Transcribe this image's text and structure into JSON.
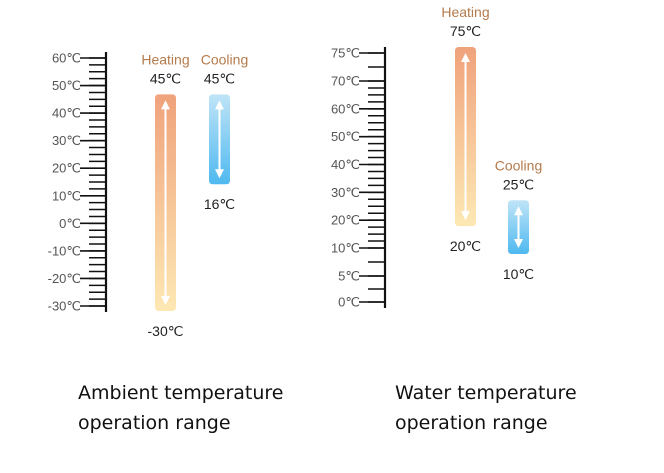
{
  "colors": {
    "heating_label": "#b57b4c",
    "heating_top": "#f0a27c",
    "heating_bottom": "#fde8b4",
    "cooling_top": "#bfe4f7",
    "cooling_bottom": "#4fb9ef",
    "axis": "#111111",
    "tick_text": "#555555",
    "value_text": "#222222"
  },
  "ambient": {
    "caption_line1": "Ambient temperature",
    "caption_line2": "operation range",
    "scale": {
      "min": -30,
      "max": 60,
      "labeled_step": 10,
      "minor_step": 2.5,
      "ticks": [
        "60℃",
        "50℃",
        "40℃",
        "30℃",
        "20℃",
        "10℃",
        "0℃",
        "-10℃",
        "-20℃",
        "-30℃"
      ],
      "tick_values": [
        60,
        50,
        40,
        30,
        20,
        10,
        0,
        -10,
        -20,
        -30
      ]
    },
    "heating": {
      "label": "Heating",
      "max_label": "45℃",
      "min_label": "-30℃",
      "max": 45,
      "min": -30
    },
    "cooling": {
      "label": "Cooling",
      "max_label": "45℃",
      "min_label": "16℃",
      "max": 45,
      "min": 16
    }
  },
  "water": {
    "caption_line1": "Water temperature",
    "caption_line2": "operation range",
    "scale": {
      "min": 0,
      "max": 75,
      "labeled_step": 5,
      "minor_step": 2.5,
      "ticks": [
        "75℃",
        "70℃",
        "60℃",
        "50℃",
        "40℃",
        "30℃",
        "20℃",
        "10℃",
        "5℃",
        "0℃"
      ],
      "tick_values": [
        75,
        70,
        60,
        50,
        40,
        30,
        20,
        10,
        5,
        0
      ]
    },
    "heating": {
      "label": "Heating",
      "max_label": "75℃",
      "min_label": "20℃",
      "max": 75,
      "min": 20
    },
    "cooling": {
      "label": "Cooling",
      "max_label": "25℃",
      "min_label": "10℃",
      "max": 25,
      "min": 10
    }
  }
}
